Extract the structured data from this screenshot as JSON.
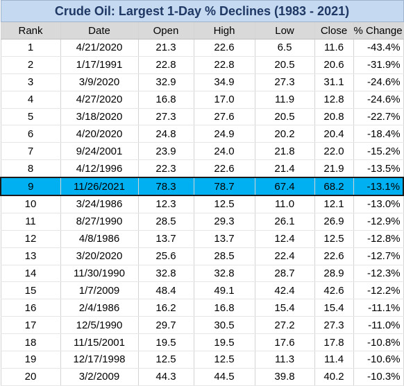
{
  "title": "Crude Oil: Largest 1-Day % Declines (1983 - 2021)",
  "headers": [
    "Rank",
    "Date",
    "Open",
    "High",
    "Low",
    "Close",
    "% Change"
  ],
  "highlight_color": "#00b0f0",
  "highlight_rank": "9",
  "rows": [
    [
      "1",
      "4/21/2020",
      "21.3",
      "22.6",
      "6.5",
      "11.6",
      "-43.4%"
    ],
    [
      "2",
      "1/17/1991",
      "22.8",
      "22.8",
      "20.5",
      "20.6",
      "-31.9%"
    ],
    [
      "3",
      "3/9/2020",
      "32.9",
      "34.9",
      "27.3",
      "31.1",
      "-24.6%"
    ],
    [
      "4",
      "4/27/2020",
      "16.8",
      "17.0",
      "11.9",
      "12.8",
      "-24.6%"
    ],
    [
      "5",
      "3/18/2020",
      "27.3",
      "27.6",
      "20.5",
      "20.8",
      "-22.7%"
    ],
    [
      "6",
      "4/20/2020",
      "24.8",
      "24.9",
      "20.2",
      "20.4",
      "-18.4%"
    ],
    [
      "7",
      "9/24/2001",
      "23.9",
      "24.0",
      "21.8",
      "22.0",
      "-15.2%"
    ],
    [
      "8",
      "4/12/1996",
      "22.3",
      "22.6",
      "21.4",
      "21.9",
      "-13.5%"
    ],
    [
      "9",
      "11/26/2021",
      "78.3",
      "78.7",
      "67.4",
      "68.2",
      "-13.1%"
    ],
    [
      "10",
      "3/24/1986",
      "12.3",
      "12.5",
      "11.0",
      "12.1",
      "-13.0%"
    ],
    [
      "11",
      "8/27/1990",
      "28.5",
      "29.3",
      "26.1",
      "26.9",
      "-12.9%"
    ],
    [
      "12",
      "4/8/1986",
      "13.7",
      "13.7",
      "12.4",
      "12.5",
      "-12.8%"
    ],
    [
      "13",
      "3/20/2020",
      "25.6",
      "28.5",
      "22.4",
      "22.6",
      "-12.7%"
    ],
    [
      "14",
      "11/30/1990",
      "32.8",
      "32.8",
      "28.7",
      "28.9",
      "-12.3%"
    ],
    [
      "15",
      "1/7/2009",
      "48.4",
      "49.1",
      "42.4",
      "42.6",
      "-12.2%"
    ],
    [
      "16",
      "2/4/1986",
      "16.2",
      "16.8",
      "15.4",
      "15.4",
      "-11.1%"
    ],
    [
      "17",
      "12/5/1990",
      "29.7",
      "30.5",
      "27.2",
      "27.3",
      "-11.0%"
    ],
    [
      "18",
      "11/15/2001",
      "19.5",
      "19.5",
      "17.6",
      "17.8",
      "-10.8%"
    ],
    [
      "19",
      "12/17/1998",
      "12.5",
      "12.5",
      "11.3",
      "11.4",
      "-10.6%"
    ],
    [
      "20",
      "3/2/2009",
      "44.3",
      "44.5",
      "39.8",
      "40.2",
      "-10.3%"
    ]
  ]
}
